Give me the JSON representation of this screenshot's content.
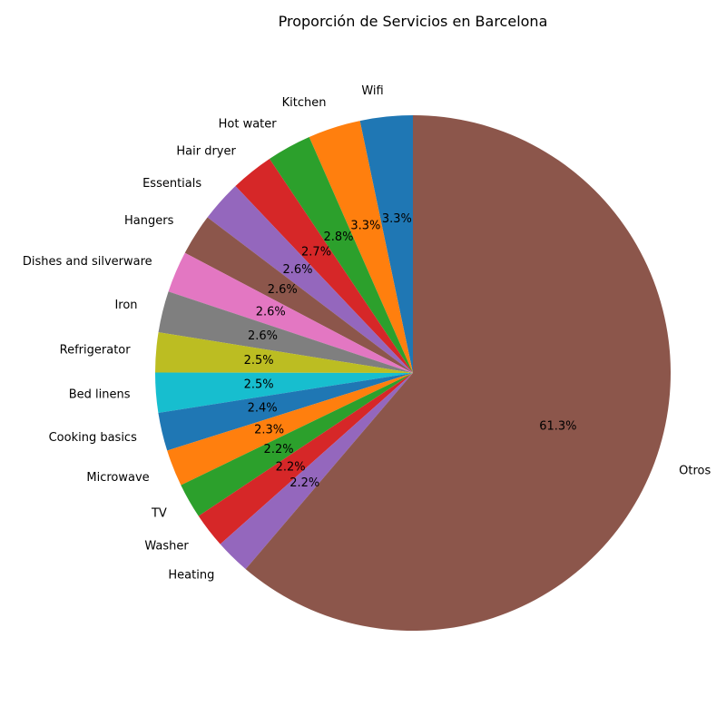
{
  "chart_data": {
    "type": "pie",
    "title": "Proporción de Servicios en Barcelona",
    "start_angle_deg": 90,
    "direction": "counterclockwise",
    "slices": [
      {
        "label": "Wifi",
        "value": 3.3,
        "pct_label": "3.3%",
        "color": "#1f77b4"
      },
      {
        "label": "Kitchen",
        "value": 3.3,
        "pct_label": "3.3%",
        "color": "#ff7f0e"
      },
      {
        "label": "Hot water",
        "value": 2.8,
        "pct_label": "2.8%",
        "color": "#2ca02c"
      },
      {
        "label": "Hair dryer",
        "value": 2.7,
        "pct_label": "2.7%",
        "color": "#d62728"
      },
      {
        "label": "Essentials",
        "value": 2.6,
        "pct_label": "2.6%",
        "color": "#9467bd"
      },
      {
        "label": "Hangers",
        "value": 2.6,
        "pct_label": "2.6%",
        "color": "#8c564b"
      },
      {
        "label": "Dishes and silverware",
        "value": 2.6,
        "pct_label": "2.6%",
        "color": "#e377c2"
      },
      {
        "label": "Iron",
        "value": 2.6,
        "pct_label": "2.6%",
        "color": "#7f7f7f"
      },
      {
        "label": "Refrigerator",
        "value": 2.5,
        "pct_label": "2.5%",
        "color": "#bcbd22"
      },
      {
        "label": "Bed linens",
        "value": 2.5,
        "pct_label": "2.5%",
        "color": "#17becf"
      },
      {
        "label": "Cooking basics",
        "value": 2.4,
        "pct_label": "2.4%",
        "color": "#1f77b4"
      },
      {
        "label": "Microwave",
        "value": 2.3,
        "pct_label": "2.3%",
        "color": "#ff7f0e"
      },
      {
        "label": "TV",
        "value": 2.2,
        "pct_label": "2.2%",
        "color": "#2ca02c"
      },
      {
        "label": "Washer",
        "value": 2.2,
        "pct_label": "2.2%",
        "color": "#d62728"
      },
      {
        "label": "Heating",
        "value": 2.2,
        "pct_label": "2.2%",
        "color": "#9467bd"
      },
      {
        "label": "Otros",
        "value": 61.3,
        "pct_label": "61.3%",
        "color": "#8c564b"
      }
    ]
  }
}
